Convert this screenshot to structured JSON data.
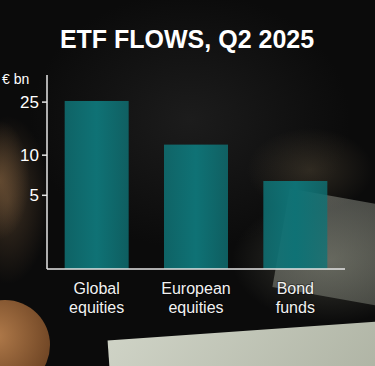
{
  "chart_data": {
    "type": "bar",
    "title": "ETF FLOWS, Q2 2025",
    "ylabel": "€ bn",
    "categories": [
      "Global equities",
      "European equities",
      "Bond funds"
    ],
    "values": [
      25.5,
      12,
      6.4
    ],
    "color": "#0f7275",
    "ylim": [
      1.4,
      36
    ],
    "yticks": [
      5,
      10,
      25
    ],
    "log": "y",
    "grid": false
  }
}
